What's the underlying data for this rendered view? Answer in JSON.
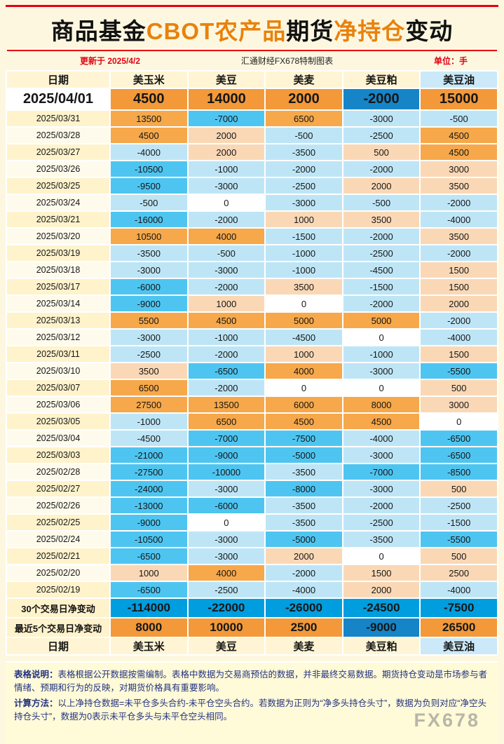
{
  "title": {
    "segments": [
      {
        "text": "商品基金",
        "color": "#111111"
      },
      {
        "text": "CBOT农产品",
        "color": "#E8820C"
      },
      {
        "text": "期货",
        "color": "#111111"
      },
      {
        "text": "净持仓",
        "color": "#E8820C"
      },
      {
        "text": "变动",
        "color": "#111111"
      }
    ]
  },
  "meta": {
    "updated": "更新于 2025/4/2",
    "source": "汇通财经FX678特制图表",
    "unit": "单位：手"
  },
  "chart_data": {
    "type": "table",
    "columns": [
      "日期",
      "美玉米",
      "美豆",
      "美麦",
      "美豆粕",
      "美豆油"
    ],
    "rows": [
      {
        "date": "2025/04/01",
        "latest": true,
        "values": [
          4500,
          14000,
          2000,
          -2000,
          15000
        ]
      },
      {
        "date": "2025/03/31",
        "latest": false,
        "values": [
          13500,
          -7000,
          6500,
          -3000,
          -500
        ]
      },
      {
        "date": "2025/03/28",
        "latest": false,
        "values": [
          4500,
          2000,
          -500,
          -2500,
          4500
        ]
      },
      {
        "date": "2025/03/27",
        "latest": false,
        "values": [
          -4000,
          2000,
          -3500,
          500,
          4500
        ]
      },
      {
        "date": "2025/03/26",
        "latest": false,
        "values": [
          -10500,
          -1000,
          -2000,
          -2000,
          3000
        ]
      },
      {
        "date": "2025/03/25",
        "latest": false,
        "values": [
          -9500,
          -3000,
          -2500,
          2000,
          3500
        ]
      },
      {
        "date": "2025/03/24",
        "latest": false,
        "values": [
          -500,
          0,
          -3000,
          -500,
          -2000
        ]
      },
      {
        "date": "2025/03/21",
        "latest": false,
        "values": [
          -16000,
          -2000,
          1000,
          3500,
          -4000
        ]
      },
      {
        "date": "2025/03/20",
        "latest": false,
        "values": [
          10500,
          4000,
          -1500,
          -2000,
          3500
        ]
      },
      {
        "date": "2025/03/19",
        "latest": false,
        "values": [
          -3500,
          -500,
          -1000,
          -2500,
          -2000
        ]
      },
      {
        "date": "2025/03/18",
        "latest": false,
        "values": [
          -3000,
          -3000,
          -1000,
          -4500,
          1500
        ]
      },
      {
        "date": "2025/03/17",
        "latest": false,
        "values": [
          -6000,
          -2000,
          3500,
          -1500,
          1500
        ]
      },
      {
        "date": "2025/03/14",
        "latest": false,
        "values": [
          -9000,
          1000,
          0,
          -2000,
          2000
        ]
      },
      {
        "date": "2025/03/13",
        "latest": false,
        "values": [
          5500,
          4500,
          5000,
          5000,
          -2000
        ]
      },
      {
        "date": "2025/03/12",
        "latest": false,
        "values": [
          -3000,
          -1000,
          -4500,
          0,
          -4000
        ]
      },
      {
        "date": "2025/03/11",
        "latest": false,
        "values": [
          -2500,
          -2000,
          1000,
          -1000,
          1500
        ]
      },
      {
        "date": "2025/03/10",
        "latest": false,
        "values": [
          3500,
          -6500,
          4000,
          -3000,
          -5500
        ]
      },
      {
        "date": "2025/03/07",
        "latest": false,
        "values": [
          6500,
          -2000,
          0,
          0,
          500
        ]
      },
      {
        "date": "2025/03/06",
        "latest": false,
        "values": [
          27500,
          13500,
          6000,
          8000,
          3000
        ]
      },
      {
        "date": "2025/03/05",
        "latest": false,
        "values": [
          -1000,
          6500,
          4500,
          4500,
          0
        ]
      },
      {
        "date": "2025/03/04",
        "latest": false,
        "values": [
          -4500,
          -7000,
          -7500,
          -4000,
          -6500
        ]
      },
      {
        "date": "2025/03/03",
        "latest": false,
        "values": [
          -21000,
          -9000,
          -5000,
          -3000,
          -6500
        ]
      },
      {
        "date": "2025/02/28",
        "latest": false,
        "values": [
          -27500,
          -10000,
          -3500,
          -7000,
          -8500
        ]
      },
      {
        "date": "2025/02/27",
        "latest": false,
        "values": [
          -24000,
          -3000,
          -8000,
          -3000,
          500
        ]
      },
      {
        "date": "2025/02/26",
        "latest": false,
        "values": [
          -13000,
          -6000,
          -3500,
          -2000,
          -2500
        ]
      },
      {
        "date": "2025/02/25",
        "latest": false,
        "values": [
          -9000,
          0,
          -3500,
          -2500,
          -1500
        ]
      },
      {
        "date": "2025/02/24",
        "latest": false,
        "values": [
          -10500,
          -3000,
          -5000,
          -3500,
          -5500
        ]
      },
      {
        "date": "2025/02/21",
        "latest": false,
        "values": [
          -6500,
          -3000,
          2000,
          0,
          500
        ]
      },
      {
        "date": "2025/02/20",
        "latest": false,
        "values": [
          1000,
          4000,
          -2000,
          1500,
          2500
        ]
      },
      {
        "date": "2025/02/19",
        "latest": false,
        "values": [
          -6500,
          -2500,
          -4000,
          2000,
          -4000
        ]
      }
    ],
    "summary": [
      {
        "label": "30个交易日净变动",
        "tone": "all-blue",
        "values": [
          -114000,
          -22000,
          -26000,
          -24500,
          -7500
        ]
      },
      {
        "label": "最近5个交易日净变动",
        "tone": "by-sign",
        "values": [
          8000,
          10000,
          2500,
          -9000,
          26500
        ]
      }
    ],
    "layout": {
      "tinted_column": 4,
      "gridlines": "white",
      "legend": "none"
    }
  },
  "notes": [
    {
      "label": "表格说明：",
      "text": "表格根据公开数据按需编制。表格中数据为交易商预估的数据，并非最终交易数据。期货持仓变动是市场参与者情绪、预期和行为的反映，对期货价格具有重要影响。"
    },
    {
      "label": "计算方法：",
      "text": "以上净持仓数据=未平仓多头合约-未平仓空头合约。若数据为正则为“净多头持仓头寸”，数据为负则对应“净空头持仓头寸”，数据为0表示未平仓多头与未平仓空头相同。"
    }
  ],
  "watermark": "FX678",
  "colors": {
    "accent_red": "#E60012",
    "title_orange": "#E8820C",
    "positive_strong": "#F6A84A",
    "positive_pale": "#FAD8B6",
    "negative_strong": "#4EC5F1",
    "negative_pale": "#BEE5F6",
    "latest_positive": "#F3993A",
    "latest_negative": "#1585C8",
    "summary_blue": "#009EDF",
    "page_background": "#FDF7E0"
  }
}
